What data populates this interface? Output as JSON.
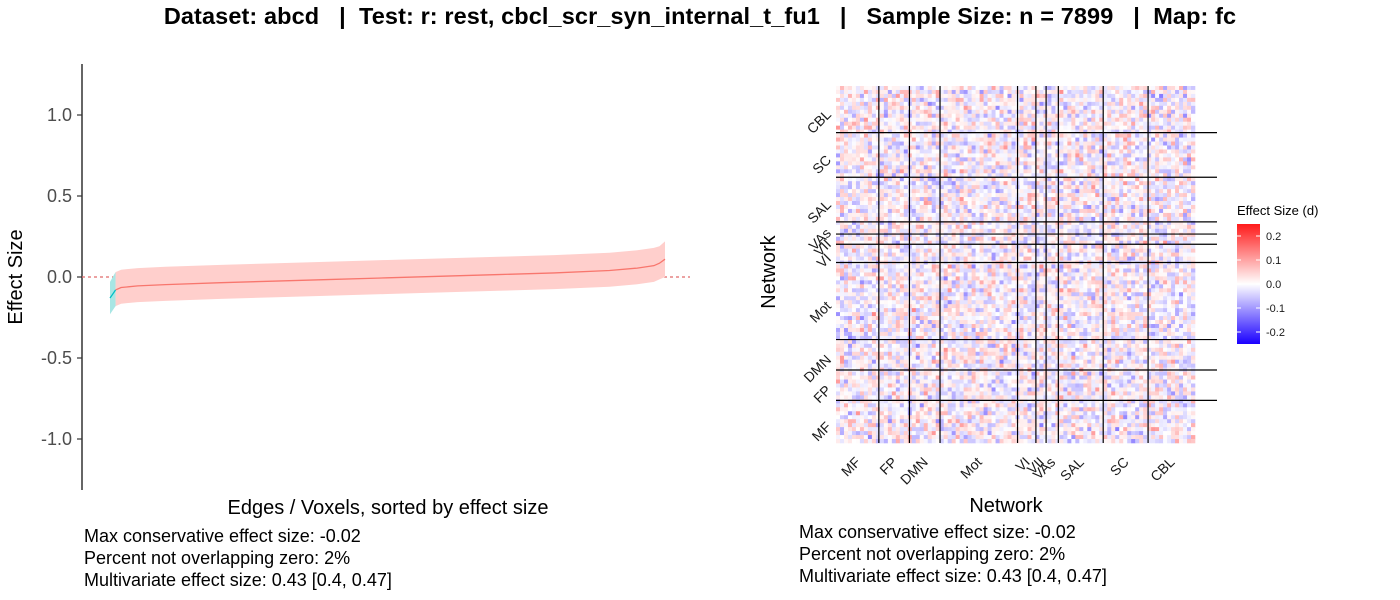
{
  "title": "Dataset: abcd   |  Test: r: rest, cbcl_scr_syn_internal_t_fu1   |   Sample Size: n = 7899   |  Map: fc",
  "chart_data": [
    {
      "type": "area",
      "xlabel": "Edges / Voxels, sorted by effect size",
      "ylabel": "Effect Size",
      "ylim": [
        -1.3,
        1.3
      ],
      "y_ticks": [
        1.0,
        0.5,
        0.0,
        -0.5,
        -1.0
      ],
      "y_tick_labels": [
        "1.0",
        "0.5",
        "0.0",
        "-0.5",
        "-1.0"
      ],
      "reference_line": 0.0,
      "series": [
        {
          "x": [
            0.0,
            0.01,
            0.02,
            0.05,
            0.1,
            0.2,
            0.3,
            0.4,
            0.5,
            0.6,
            0.7,
            0.8,
            0.9,
            0.95,
            0.98,
            0.99,
            1.0
          ],
          "values": [
            -0.13,
            -0.08,
            -0.065,
            -0.055,
            -0.047,
            -0.035,
            -0.025,
            -0.015,
            -0.005,
            0.005,
            0.015,
            0.025,
            0.04,
            0.055,
            0.07,
            0.085,
            0.11
          ],
          "lower": [
            -0.23,
            -0.18,
            -0.165,
            -0.155,
            -0.147,
            -0.135,
            -0.125,
            -0.115,
            -0.105,
            -0.095,
            -0.085,
            -0.075,
            -0.06,
            -0.045,
            -0.03,
            -0.015,
            0.0
          ],
          "upper": [
            -0.03,
            0.03,
            0.045,
            0.055,
            0.063,
            0.075,
            0.085,
            0.095,
            0.105,
            0.115,
            0.125,
            0.135,
            0.15,
            0.165,
            0.18,
            0.19,
            0.22
          ]
        }
      ],
      "colors": {
        "line": "#f8766d",
        "band": "#ffcfcc",
        "line_overlap_zero": "#00bfc4",
        "band_overlap_zero": "#a8e6e4",
        "reference": "#e06a6a"
      },
      "stats": [
        "Max conservative effect size: -0.02",
        "Percent not overlapping zero: 2%",
        "Multivariate effect size: 0.43 [0.4, 0.47]"
      ]
    },
    {
      "type": "heatmap",
      "xlabel": "Network",
      "ylabel": "Network",
      "networks": [
        "MF",
        "FP",
        "DMN",
        "Mot",
        "VI",
        "VII",
        "VAs",
        "SAL",
        "SC",
        "CBL"
      ],
      "network_fraction": [
        0.105,
        0.075,
        0.075,
        0.19,
        0.045,
        0.025,
        0.03,
        0.11,
        0.11,
        0.115
      ],
      "legend_title": "Effect Size (d)",
      "legend_ticks": [
        0.2,
        0.1,
        0.0,
        -0.1,
        -0.2
      ],
      "legend_tick_labels": [
        "0.2",
        "0.1",
        "0.0",
        "-0.1",
        "-0.2"
      ],
      "value_range": [
        -0.25,
        0.25
      ],
      "colors": {
        "low": "#1a00ff",
        "mid": "#ffffff",
        "high": "#ff1a1a"
      },
      "stats": [
        "Max conservative effect size: -0.02",
        "Percent not overlapping zero: 2%",
        "Multivariate effect size: 0.43 [0.4, 0.47]"
      ]
    }
  ]
}
